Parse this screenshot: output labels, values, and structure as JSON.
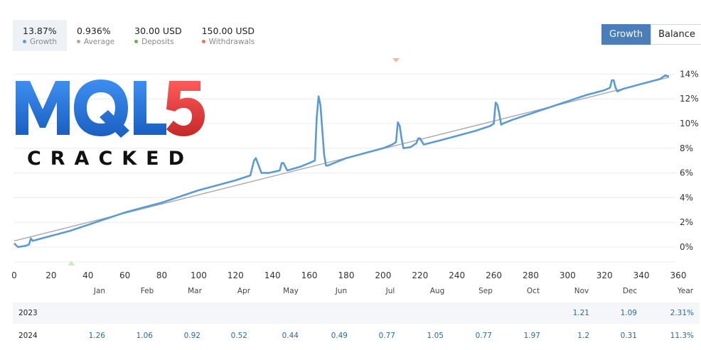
{
  "stats": [
    {
      "value": "13.87%",
      "label": "Growth",
      "color": "#5b9bd5",
      "active": true
    },
    {
      "value": "0.936%",
      "label": "Average",
      "color": "#aaaaaa",
      "active": false
    },
    {
      "value": "30.00 USD",
      "label": "Deposits",
      "color": "#6ab04c",
      "active": false
    },
    {
      "value": "150.00 USD",
      "label": "Withdrawals",
      "color": "#e57359",
      "active": false
    }
  ],
  "toggle": {
    "growth_label": "Growth",
    "balance_label": "Balance"
  },
  "logo": {
    "top_text": "MQL5",
    "bottom_text": "CRACKED",
    "blue": "#1f6fd1",
    "red": "#e03a3e"
  },
  "chart_data": {
    "type": "line",
    "xlim": [
      0,
      360
    ],
    "ylim": [
      -1,
      15
    ],
    "x_ticks": [
      0,
      20,
      40,
      60,
      80,
      100,
      120,
      140,
      160,
      180,
      200,
      220,
      240,
      260,
      280,
      300,
      320,
      340,
      360
    ],
    "y_ticks": [
      0,
      2,
      4,
      6,
      8,
      10,
      12,
      14
    ],
    "y_tick_labels": [
      "0%",
      "2%",
      "4%",
      "6%",
      "8%",
      "10%",
      "12%",
      "14%"
    ],
    "grid": true,
    "series": [
      {
        "name": "Growth",
        "color": "#5b9bd5",
        "points": [
          [
            0,
            0.3
          ],
          [
            2,
            0
          ],
          [
            6,
            0.1
          ],
          [
            8,
            0.2
          ],
          [
            9,
            0.7
          ],
          [
            10,
            0.5
          ],
          [
            20,
            0.9
          ],
          [
            30,
            1.3
          ],
          [
            40,
            1.8
          ],
          [
            50,
            2.3
          ],
          [
            60,
            2.8
          ],
          [
            70,
            3.2
          ],
          [
            80,
            3.6
          ],
          [
            90,
            4.1
          ],
          [
            100,
            4.6
          ],
          [
            110,
            5.0
          ],
          [
            120,
            5.4
          ],
          [
            128,
            5.8
          ],
          [
            130,
            7.0
          ],
          [
            131,
            7.2
          ],
          [
            132,
            6.8
          ],
          [
            134,
            6.0
          ],
          [
            138,
            6.0
          ],
          [
            144,
            6.2
          ],
          [
            145,
            6.8
          ],
          [
            146,
            6.8
          ],
          [
            147,
            6.5
          ],
          [
            148,
            6.2
          ],
          [
            155,
            6.5
          ],
          [
            160,
            6.8
          ],
          [
            163,
            7.0
          ],
          [
            164,
            10.5
          ],
          [
            165,
            12.2
          ],
          [
            166,
            11.5
          ],
          [
            167,
            9.5
          ],
          [
            168,
            7.5
          ],
          [
            169,
            6.6
          ],
          [
            170,
            6.6
          ],
          [
            180,
            7.2
          ],
          [
            190,
            7.6
          ],
          [
            200,
            8.0
          ],
          [
            205,
            8.3
          ],
          [
            207,
            8.5
          ],
          [
            208,
            10.1
          ],
          [
            209,
            9.8
          ],
          [
            210,
            8.8
          ],
          [
            211,
            8.0
          ],
          [
            215,
            8.1
          ],
          [
            218,
            8.4
          ],
          [
            219,
            8.8
          ],
          [
            220,
            8.8
          ],
          [
            222,
            8.3
          ],
          [
            230,
            8.6
          ],
          [
            240,
            9.0
          ],
          [
            250,
            9.4
          ],
          [
            258,
            9.8
          ],
          [
            260,
            10.0
          ],
          [
            261,
            11.7
          ],
          [
            262,
            11.5
          ],
          [
            263,
            10.8
          ],
          [
            264,
            9.9
          ],
          [
            265,
            10.0
          ],
          [
            270,
            10.3
          ],
          [
            280,
            10.8
          ],
          [
            290,
            11.3
          ],
          [
            300,
            11.8
          ],
          [
            310,
            12.3
          ],
          [
            320,
            12.7
          ],
          [
            323,
            12.9
          ],
          [
            324,
            13.5
          ],
          [
            325,
            13.5
          ],
          [
            326,
            12.9
          ],
          [
            327,
            12.6
          ],
          [
            330,
            12.8
          ],
          [
            340,
            13.2
          ],
          [
            350,
            13.6
          ],
          [
            353,
            13.9
          ],
          [
            355,
            13.8
          ]
        ]
      },
      {
        "name": "Average",
        "color": "#aaaaaa",
        "points": [
          [
            0,
            0.5
          ],
          [
            355,
            13.75
          ]
        ]
      }
    ],
    "markers": [
      {
        "type": "withdrawal",
        "x": 207,
        "color": "#f4b6a8"
      },
      {
        "type": "deposit",
        "x": 31,
        "color": "#cfe8c9"
      }
    ]
  },
  "table": {
    "months": [
      "Jan",
      "Feb",
      "Mar",
      "Apr",
      "May",
      "Jun",
      "Jul",
      "Aug",
      "Sep",
      "Oct",
      "Nov",
      "Dec",
      "Year"
    ],
    "rows": [
      {
        "year": "2023",
        "values": [
          "",
          "",
          "",
          "",
          "",
          "",
          "",
          "",
          "",
          "",
          "1.21",
          "1.09",
          "2.31%"
        ]
      },
      {
        "year": "2024",
        "values": [
          "1.26",
          "1.06",
          "0.92",
          "0.52",
          "0.44",
          "0.49",
          "0.77",
          "1.05",
          "0.77",
          "1.97",
          "1.2",
          "0.31",
          "11.3%"
        ]
      }
    ]
  }
}
